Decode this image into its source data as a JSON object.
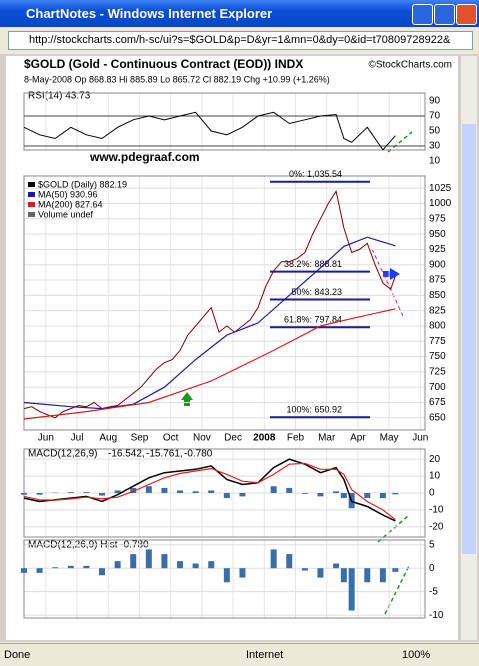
{
  "window": {
    "title": "ChartNotes - Windows Internet Explorer",
    "url": "http://stockcharts.com/h-sc/ui?s=$GOLD&p=D&yr=1&mn=0&dy=0&id=t70809728922&",
    "status": [
      "Done",
      "Internet",
      "100%"
    ]
  },
  "chart": {
    "title": "$GOLD (Gold - Continuous Contract (EOD)) INDX",
    "source": "©StockCharts.com",
    "quote": "8-May-2008   Op 868.83  Hi 885.89  Lo 865.72  Cl 882.19  Chg +10.99 (+1.26%)",
    "watermark": "www.pdegraaf.com",
    "xlim": [
      0,
      12.85
    ],
    "xticks": [
      {
        "value": 0.7,
        "label": "Jun"
      },
      {
        "value": 1.7,
        "label": "Jul"
      },
      {
        "value": 2.7,
        "label": "Aug"
      },
      {
        "value": 3.7,
        "label": "Sep"
      },
      {
        "value": 4.7,
        "label": "Oct"
      },
      {
        "value": 5.7,
        "label": "Nov"
      },
      {
        "value": 6.7,
        "label": "Dec"
      },
      {
        "value": 7.7,
        "label": "2008"
      },
      {
        "value": 8.7,
        "label": "Feb"
      },
      {
        "value": 9.7,
        "label": "Mar"
      },
      {
        "value": 10.7,
        "label": "Apr"
      },
      {
        "value": 11.7,
        "label": "May"
      },
      {
        "value": 12.7,
        "label": "Jun"
      }
    ],
    "rsi": {
      "label": "RSI(14) 43.73",
      "ylim": [
        0,
        100
      ],
      "yticks": [
        90,
        70,
        50,
        30,
        10
      ],
      "levels": [
        70,
        30
      ],
      "color": "#000000",
      "x": [
        0,
        0.5,
        1,
        1.5,
        2,
        2.5,
        3,
        3.5,
        4,
        4.5,
        5,
        5.5,
        6,
        6.5,
        7,
        7.5,
        8,
        8.5,
        9,
        9.5,
        10,
        10.25,
        10.5,
        11,
        11.5,
        11.9
      ],
      "values": [
        55,
        45,
        40,
        55,
        45,
        40,
        55,
        65,
        70,
        65,
        70,
        75,
        50,
        45,
        55,
        70,
        75,
        60,
        65,
        70,
        72,
        40,
        35,
        55,
        25,
        43.73
      ]
    },
    "price": {
      "ylim": [
        630,
        1045
      ],
      "yticks": [
        650,
        675,
        700,
        725,
        750,
        775,
        800,
        825,
        850,
        875,
        900,
        925,
        950,
        975,
        1000,
        1025
      ],
      "legend": [
        {
          "name": "$GOLD (Daily) 882.19",
          "color": "#000000"
        },
        {
          "name": "MA(50) 930.96",
          "color": "#1a1aa8"
        },
        {
          "name": "MA(200) 827.64",
          "color": "#d42020"
        },
        {
          "name": "Volume undef",
          "color": "#666666"
        }
      ],
      "series": [
        {
          "name": "$GOLD",
          "color": "#800000",
          "x": [
            0,
            0.25,
            0.5,
            0.75,
            1,
            1.25,
            1.5,
            1.75,
            2,
            2.25,
            2.5,
            2.75,
            3,
            3.25,
            3.5,
            3.75,
            4,
            4.25,
            4.5,
            4.75,
            5,
            5.25,
            5.5,
            5.75,
            6,
            6.25,
            6.5,
            6.75,
            7,
            7.25,
            7.5,
            7.75,
            8,
            8.25,
            8.5,
            8.75,
            9,
            9.25,
            9.5,
            9.75,
            10,
            10.25,
            10.5,
            10.75,
            11,
            11.25,
            11.5,
            11.75,
            11.9
          ],
          "values": [
            665,
            668,
            660,
            655,
            650,
            660,
            665,
            670,
            668,
            675,
            665,
            668,
            670,
            680,
            690,
            700,
            715,
            730,
            740,
            745,
            760,
            785,
            800,
            815,
            830,
            790,
            800,
            790,
            800,
            810,
            830,
            865,
            890,
            905,
            905,
            910,
            920,
            950,
            975,
            1000,
            1020,
            960,
            920,
            925,
            935,
            900,
            870,
            860,
            882
          ]
        },
        {
          "name": "MA(50)",
          "color": "#1a1aa8",
          "x": [
            0,
            1.5,
            2.5,
            3.5,
            4.5,
            5.5,
            6.5,
            7.5,
            8.5,
            9.5,
            10.25,
            11,
            11.9
          ],
          "values": [
            675,
            668,
            665,
            672,
            700,
            745,
            785,
            805,
            850,
            895,
            930,
            945,
            931
          ]
        },
        {
          "name": "MA(200)",
          "color": "#d42020",
          "x": [
            0,
            2,
            4,
            6,
            8,
            9.5,
            10.5,
            11.9
          ],
          "values": [
            648,
            660,
            675,
            710,
            760,
            800,
            812,
            828
          ]
        }
      ],
      "fib_levels": [
        {
          "value": 1035.54,
          "label": "0%: 1,035.54"
        },
        {
          "value": 888.81,
          "label": "38.2%: 888.81"
        },
        {
          "value": 843.23,
          "label": "50%: 843.23"
        },
        {
          "value": 797.84,
          "label": "61.8%: 797.84"
        },
        {
          "value": 650.92,
          "label": "100%: 650.92"
        }
      ]
    },
    "macd": {
      "label": "MACD(12,26,9)",
      "readings": [
        "-16.542,",
        "-15.761,",
        "-0.780"
      ],
      "ylim": [
        -26,
        26
      ],
      "yticks": [
        20,
        10,
        0,
        -10,
        -20
      ],
      "x": [
        0,
        0.5,
        1,
        1.5,
        2,
        2.5,
        3,
        3.5,
        4,
        4.5,
        5,
        5.5,
        6,
        6.5,
        7,
        7.5,
        8,
        8.5,
        9,
        9.5,
        10,
        10.25,
        10.5,
        11,
        11.5,
        11.9
      ],
      "series": [
        {
          "name": "MACD",
          "color": "#000000",
          "values": [
            -3,
            -5,
            -4,
            -3,
            -2,
            -5,
            -1,
            4,
            9,
            12,
            13,
            14,
            16,
            8,
            5,
            6,
            15,
            20,
            17,
            12,
            15,
            8,
            -5,
            -8,
            -13,
            -16.5
          ]
        },
        {
          "name": "Signal",
          "color": "#e02020",
          "values": [
            -2,
            -4,
            -4.2,
            -3.5,
            -2.5,
            -3.5,
            -2.5,
            1,
            5,
            9,
            11.5,
            13,
            14.5,
            11,
            7,
            6,
            11,
            17,
            17.5,
            14,
            14,
            11,
            2,
            -5,
            -10,
            -15.761
          ]
        },
        {
          "name": "Hist",
          "color": "#3a6ea8",
          "values": [
            -1,
            -1,
            0.2,
            0.5,
            0.5,
            -1.5,
            1.5,
            3,
            4,
            3,
            1.5,
            1,
            1.5,
            -3,
            -2,
            0,
            4,
            3,
            -0.5,
            -2,
            1,
            -3,
            -9,
            -3,
            -3,
            -0.78
          ]
        }
      ]
    },
    "hist": {
      "label": "MACD(12,26,9) Hist -0.780",
      "ylim": [
        -10.6,
        6
      ],
      "yticks": [
        5,
        0,
        -5,
        -10
      ],
      "color": "#3a6ea8"
    }
  }
}
